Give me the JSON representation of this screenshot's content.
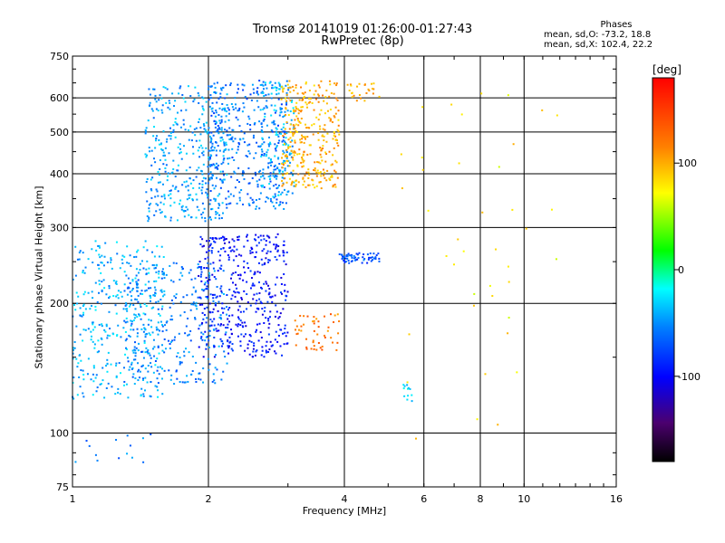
{
  "chart_data": {
    "type": "scatter",
    "title": "Tromsø 20141019 01:26:00-01:27:43",
    "subtitle": "RwPretec (8p)",
    "xlabel": "Frequency [MHz]",
    "ylabel": "Stationary phase Virtual Height [km]",
    "x_scale": "log",
    "y_scale": "log",
    "xlim": [
      1,
      16
    ],
    "ylim": [
      75,
      750
    ],
    "x_ticks": [
      "1",
      "2",
      "4",
      "6",
      "8",
      "10",
      "16"
    ],
    "y_ticks": [
      "75",
      "100",
      "200",
      "300",
      "400",
      "500",
      "600",
      "750"
    ],
    "grid_x": [
      2,
      4,
      6,
      8,
      10
    ],
    "grid_y": [
      100,
      200,
      300,
      400,
      500,
      600
    ],
    "colorbar": {
      "label": "[deg]",
      "range": [
        -180,
        180
      ],
      "ticks": [
        "100",
        "0",
        "-100"
      ],
      "tick_values": [
        100,
        0,
        -100
      ]
    },
    "stats": {
      "heading": "Phases",
      "o_mode": "mean, sd,O: -73.2, 18.8",
      "x_mode": "mean, sd,X: 102.4, 22.2"
    },
    "clusters": [
      {
        "f": [
          1.0,
          1.6
        ],
        "h": [
          120,
          280
        ],
        "phase": -40,
        "n": 380
      },
      {
        "f": [
          1.3,
          2.2
        ],
        "h": [
          130,
          250
        ],
        "phase": -55,
        "n": 300
      },
      {
        "f": [
          1.9,
          3.0
        ],
        "h": [
          150,
          290
        ],
        "phase": -95,
        "n": 420
      },
      {
        "f": [
          1.45,
          2.2
        ],
        "h": [
          310,
          640
        ],
        "phase": -45,
        "n": 380
      },
      {
        "f": [
          2.0,
          3.0
        ],
        "h": [
          330,
          660
        ],
        "phase": -60,
        "n": 360
      },
      {
        "f": [
          2.6,
          3.1
        ],
        "h": [
          350,
          660
        ],
        "phase": -40,
        "n": 150
      },
      {
        "f": [
          2.9,
          3.9
        ],
        "h": [
          370,
          660
        ],
        "phase": 100,
        "n": 320
      },
      {
        "f": [
          3.1,
          3.9
        ],
        "h": [
          155,
          190
        ],
        "phase": 120,
        "n": 50
      },
      {
        "f": [
          3.9,
          4.8
        ],
        "h": [
          248,
          262
        ],
        "phase": -70,
        "n": 60
      },
      {
        "f": [
          4.0,
          4.8
        ],
        "h": [
          590,
          650
        ],
        "phase": 100,
        "n": 25
      },
      {
        "f": [
          5.4,
          5.7
        ],
        "h": [
          118,
          130
        ],
        "phase": -30,
        "n": 12
      },
      {
        "f": [
          4.8,
          12
        ],
        "h": [
          95,
          620
        ],
        "phase": 80,
        "n": 40
      },
      {
        "f": [
          1.0,
          1.7
        ],
        "h": [
          85,
          100
        ],
        "phase": -60,
        "n": 14
      }
    ]
  }
}
